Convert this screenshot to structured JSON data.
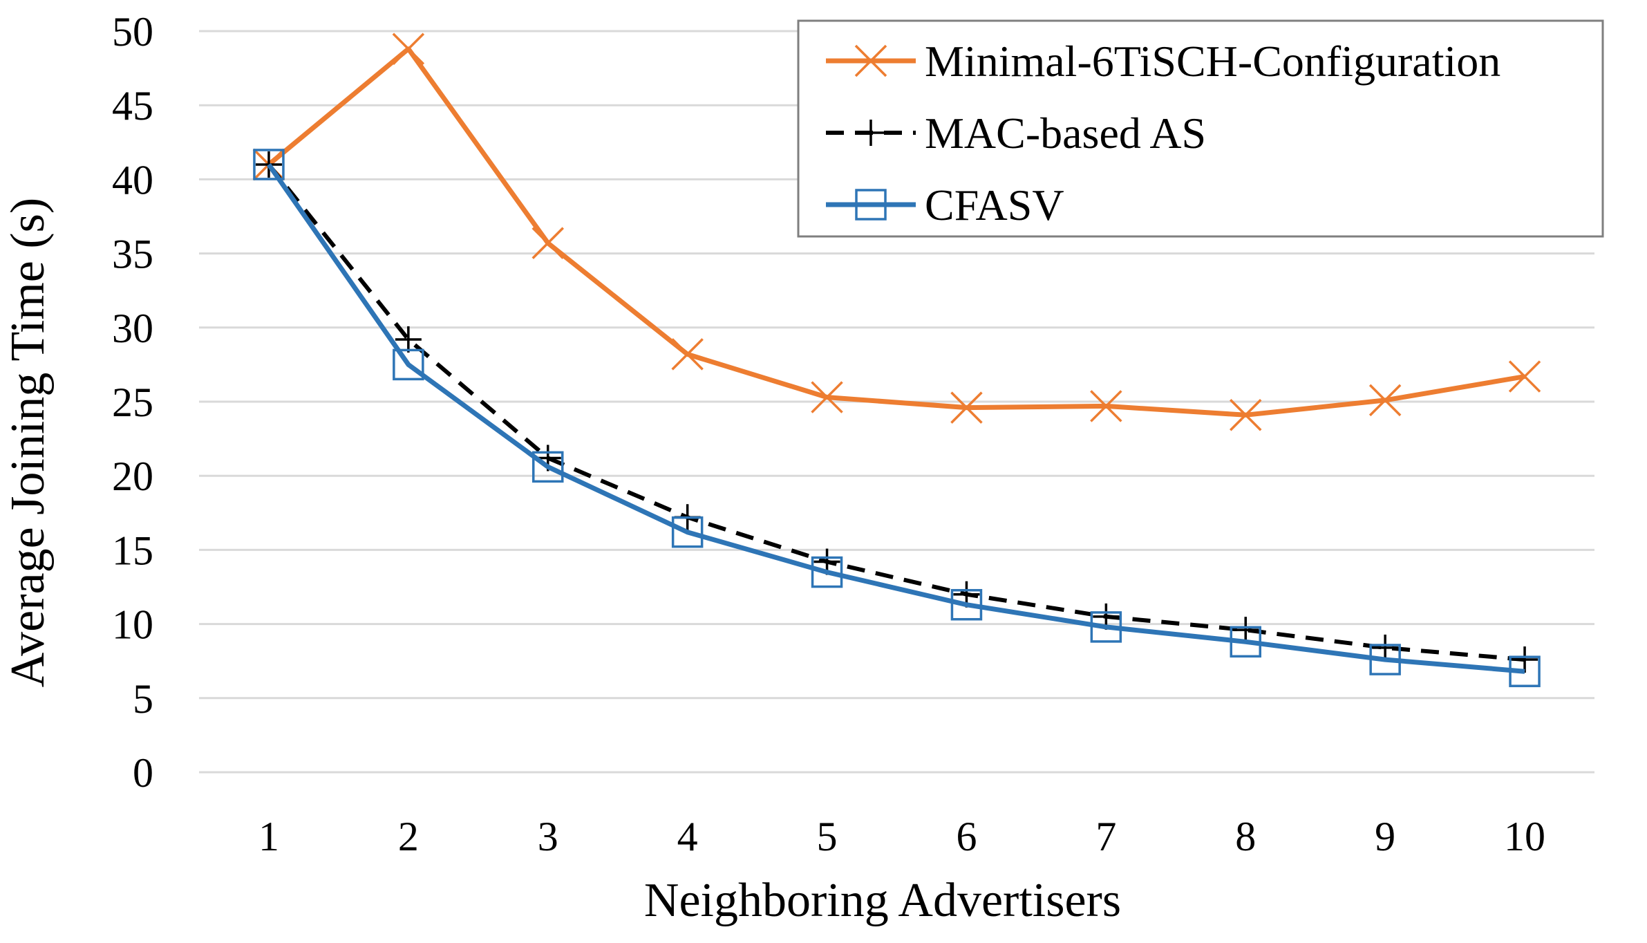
{
  "chart_data": {
    "type": "line",
    "title": "",
    "xlabel": "Neighboring Advertisers",
    "ylabel": "Average Joining Time (s)",
    "categories": [
      "1",
      "2",
      "3",
      "4",
      "5",
      "6",
      "7",
      "8",
      "9",
      "10"
    ],
    "x": [
      1,
      2,
      3,
      4,
      5,
      6,
      7,
      8,
      9,
      10
    ],
    "ylim": [
      0,
      50
    ],
    "yticks": [
      "0",
      "5",
      "10",
      "15",
      "20",
      "25",
      "30",
      "35",
      "40",
      "45",
      "50"
    ],
    "grid": true,
    "legend_position": "top-right",
    "series": [
      {
        "name": "Minimal-6TiSCH-Configuration",
        "color": "#ED7D31",
        "marker": "x",
        "line_style": "solid",
        "values": [
          41.0,
          48.8,
          35.7,
          28.2,
          25.3,
          24.6,
          24.7,
          24.1,
          25.1,
          26.7
        ]
      },
      {
        "name": "MAC-based AS",
        "color": "#000000",
        "marker": "plus",
        "line_style": "dashed",
        "values": [
          41.0,
          29.2,
          21.2,
          17.2,
          14.2,
          12.0,
          10.5,
          9.6,
          8.4,
          7.6
        ]
      },
      {
        "name": "CFASV",
        "color": "#2E75B6",
        "marker": "square",
        "line_style": "solid",
        "values": [
          41.0,
          27.5,
          20.6,
          16.2,
          13.5,
          11.3,
          9.8,
          8.8,
          7.6,
          6.8
        ]
      }
    ]
  }
}
